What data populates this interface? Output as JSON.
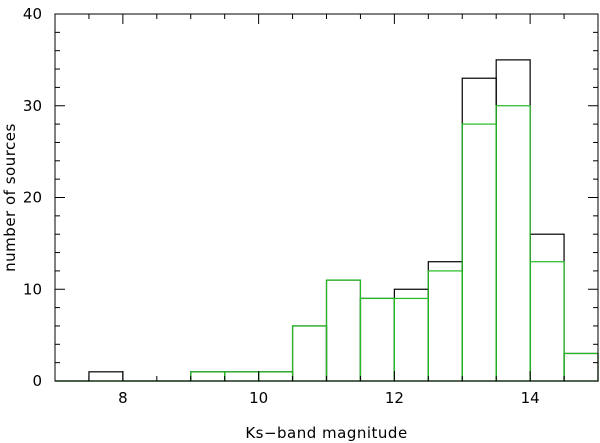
{
  "chart_data": {
    "type": "histogram",
    "title": "",
    "xlabel": "Ks−band magnitude",
    "ylabel": "number of sources",
    "xlim": [
      7,
      15
    ],
    "ylim": [
      0,
      40
    ],
    "bin_edges": [
      7.0,
      7.5,
      8.0,
      8.5,
      9.0,
      9.5,
      10.0,
      10.5,
      11.0,
      11.5,
      12.0,
      12.5,
      13.0,
      13.5,
      14.0,
      14.5,
      15.0
    ],
    "x_ticks": [
      8,
      10,
      12,
      14
    ],
    "x_tick_labels": [
      "8",
      "10",
      "12",
      "14"
    ],
    "y_ticks": [
      0,
      10,
      20,
      30,
      40
    ],
    "y_tick_labels": [
      "0",
      "10",
      "20",
      "30",
      "40"
    ],
    "grid": false,
    "series": [
      {
        "color": "#000000",
        "values": [
          0,
          1,
          0,
          0,
          1,
          1,
          1,
          6,
          11,
          9,
          10,
          13,
          33,
          35,
          16,
          3
        ]
      },
      {
        "color": "#22bb22",
        "values": [
          0,
          0,
          0,
          0,
          1,
          1,
          1,
          6,
          11,
          9,
          9,
          12,
          28,
          30,
          13,
          3
        ]
      }
    ]
  }
}
